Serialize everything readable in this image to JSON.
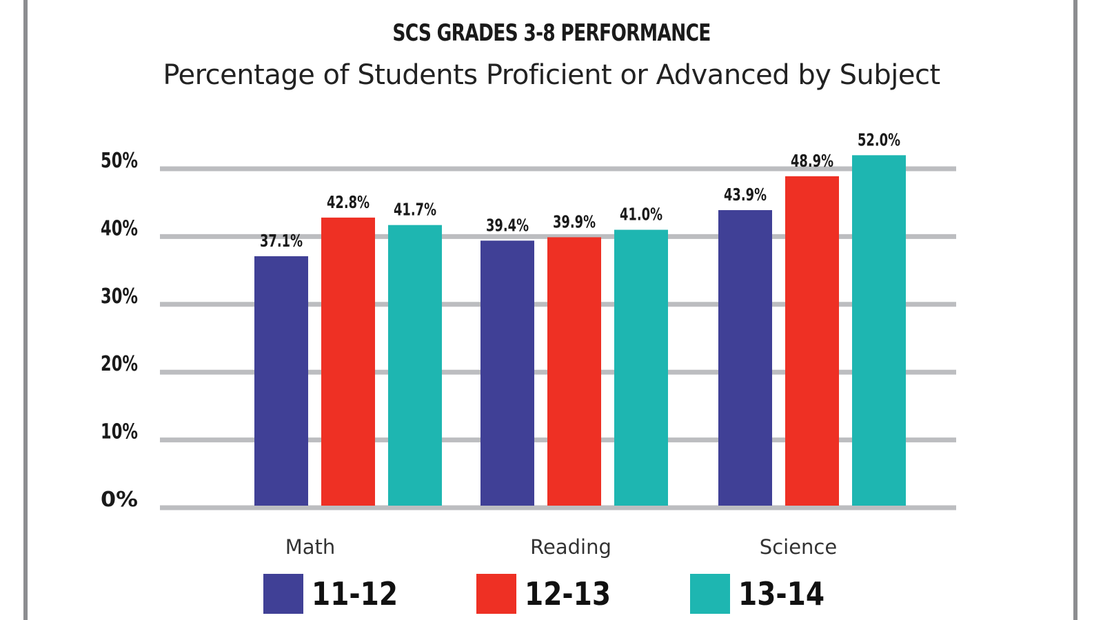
{
  "chart_data": {
    "type": "bar",
    "title": "SCS GRADES 3-8 PERFORMANCE",
    "subtitle": "Percentage of Students Proficient or Advanced by Subject",
    "categories": [
      "Math",
      "Reading",
      "Science"
    ],
    "series": [
      {
        "name": "11-12",
        "color": "#404096",
        "values": [
          37.1,
          39.4,
          43.9
        ],
        "labels": [
          "37.1%",
          "39.4%",
          "43.9%"
        ]
      },
      {
        "name": "12-13",
        "color": "#ee3024",
        "values": [
          42.8,
          39.9,
          48.9
        ],
        "labels": [
          "42.8%",
          "39.9%",
          "48.9%"
        ]
      },
      {
        "name": "13-14",
        "color": "#1eb6b1",
        "values": [
          41.7,
          41.0,
          52.0
        ],
        "labels": [
          "41.7%",
          "41.0%",
          "52.0%"
        ]
      }
    ],
    "yticks": [
      "0%",
      "10%",
      "20%",
      "30%",
      "40%",
      "50%"
    ],
    "ylim": [
      0,
      50
    ],
    "grid": true,
    "legend_position": "bottom"
  }
}
